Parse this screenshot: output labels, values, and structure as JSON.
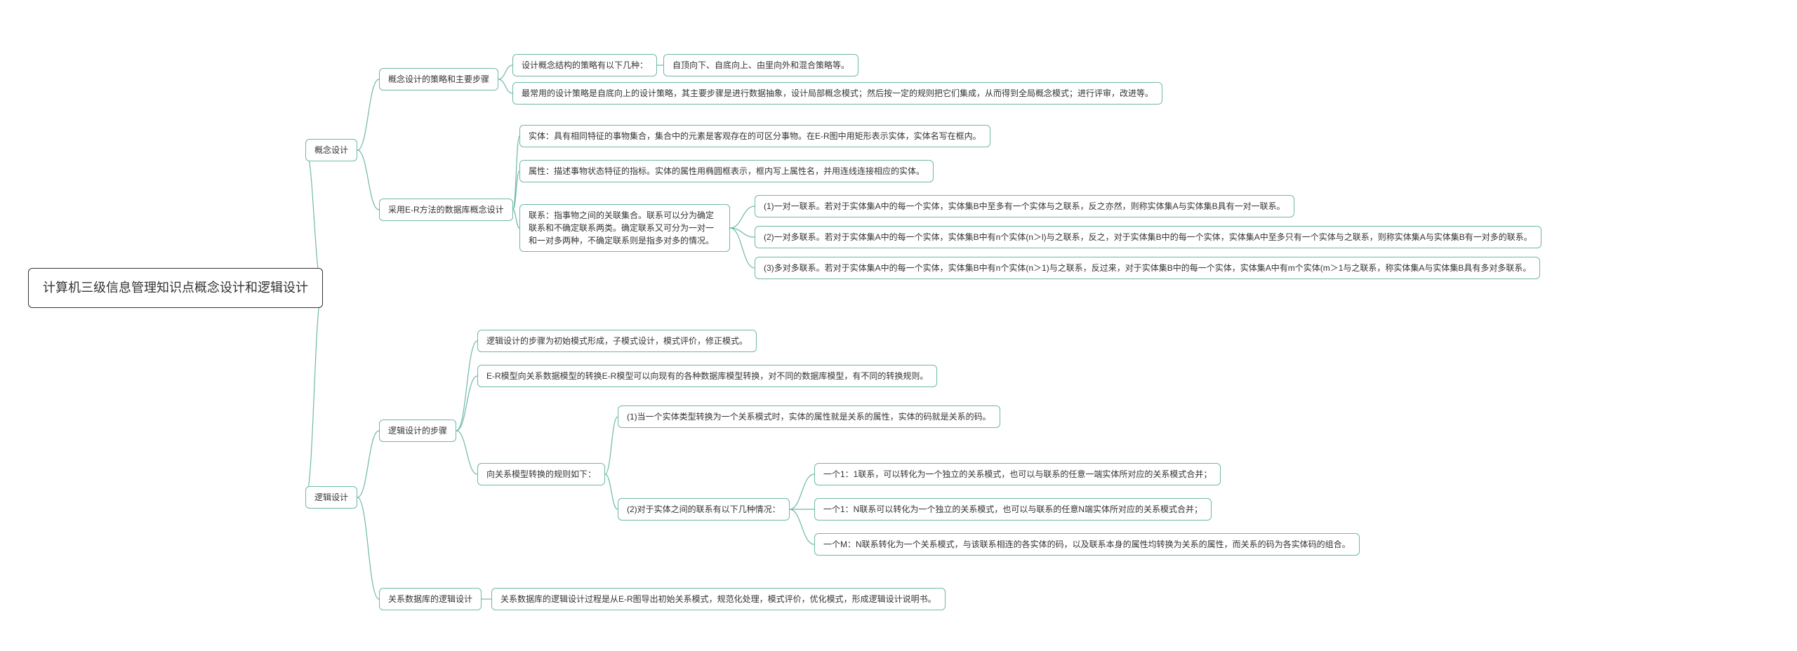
{
  "colors": {
    "root_border": "#333333",
    "node_border": "#6fb8a8",
    "connector": "#6fb8a8",
    "bg": "#ffffff",
    "text": "#333333"
  },
  "root": {
    "label": "计算机三级信息管理知识点概念设计和逻辑设计"
  },
  "n1": {
    "label": "概念设计"
  },
  "n1a": {
    "label": "概念设计的策略和主要步骤"
  },
  "n1a1": {
    "label": "设计概念结构的策略有以下几种："
  },
  "n1a1a": {
    "label": "自顶向下、自底向上、由里向外和混合策略等。"
  },
  "n1a2": {
    "label": "最常用的设计策略是自底向上的设计策略，其主要步骤是进行数据抽象，设计局部概念模式；然后按一定的规则把它们集成，从而得到全局概念模式；进行评审，改进等。"
  },
  "n1b": {
    "label": "采用E-R方法的数据库概念设计"
  },
  "n1b1": {
    "label": "实体：具有相同特征的事物集合，集合中的元素是客观存在的可区分事物。在E-R图中用矩形表示实体，实体名写在框内。"
  },
  "n1b2": {
    "label": "属性：描述事物状态特征的指标。实体的属性用椭圆框表示，框内写上属性名，并用连线连接相应的实体。"
  },
  "n1b3": {
    "label": "联系：指事物之间的关联集合。联系可以分为确定联系和不确定联系两类。确定联系又可分为一对一和一对多两种，不确定联系则是指多对多的情况。"
  },
  "n1b3a": {
    "label": "(1)一对一联系。若对于实体集A中的每一个实体，实体集B中至多有一个实体与之联系，反之亦然，则称实体集A与实体集B具有一对一联系。"
  },
  "n1b3b": {
    "label": "(2)一对多联系。若对于实体集A中的每一个实体，实体集B中有n个实体(n＞l)与之联系，反之，对于实体集B中的每一个实体，实体集A中至多只有一个实体与之联系，则称实体集A与实体集B有一对多的联系。"
  },
  "n1b3c": {
    "label": "(3)多对多联系。若对于实体集A中的每一个实体，实体集B中有n个实体(n＞1)与之联系，反过来，对于实体集B中的每一个实体，实体集A中有m个实体(m＞1与之联系，称实体集A与实体集B具有多对多联系。"
  },
  "n2": {
    "label": "逻辑设计"
  },
  "n2a": {
    "label": "逻辑设计的步骤"
  },
  "n2a1": {
    "label": "逻辑设计的步骤为初始模式形成，子模式设计，模式评价，修正模式。"
  },
  "n2a2": {
    "label": "E-R模型向关系数据模型的转换E-R模型可以向现有的各种数据库模型转换，对不同的数据库模型，有不同的转换规则。"
  },
  "n2a3": {
    "label": "向关系模型转换的规则如下："
  },
  "n2a3a": {
    "label": "(1)当一个实体类型转换为一个关系模式时，实体的属性就是关系的属性，实体的码就是关系的码。"
  },
  "n2a3b": {
    "label": "(2)对于实体之间的联系有以下几种情况："
  },
  "n2a3b1": {
    "label": "一个1：1联系，可以转化为一个独立的关系模式，也可以与联系的任意一端实体所对应的关系模式合并；"
  },
  "n2a3b2": {
    "label": "一个1：N联系可以转化为一个独立的关系模式，也可以与联系的任意N端实体所对应的关系模式合并；"
  },
  "n2a3b3": {
    "label": "一个M：N联系转化为一个关系模式，与该联系相连的各实体的码，以及联系本身的属性均转换为关系的属性，而关系的码为各实体码的组合。"
  },
  "n2b": {
    "label": "关系数据库的逻辑设计"
  },
  "n2b1": {
    "label": "关系数据库的逻辑设计过程是从E-R图导出初始关系模式，规范化处理，模式评价，优化模式，形成逻辑设计说明书。"
  }
}
